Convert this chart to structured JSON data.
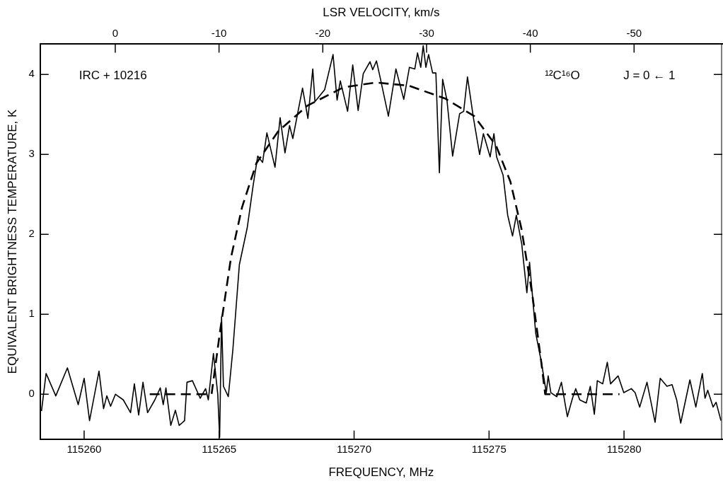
{
  "chart_data": {
    "type": "line",
    "xlabel": "FREQUENCY, MHz",
    "ylabel": "EQUIVALENT BRIGHTNESS TEMPERATURE, K",
    "x2label": "LSR VELOCITY, km/s",
    "xlim": [
      115258.37,
      115283.64
    ],
    "xticks": [
      115260,
      115265,
      115270,
      115275,
      115280
    ],
    "x2lim": [
      7.24,
      -58.5
    ],
    "x2ticks": [
      0,
      -10,
      -20,
      -30,
      -40,
      -50
    ],
    "ylim": [
      -0.56,
      4.38
    ],
    "yticks": [
      0,
      1,
      2,
      3,
      4
    ],
    "grid": false,
    "legend": false,
    "marker": "none",
    "annotations": [
      "IRC + 10216",
      "¹²C¹⁶O",
      "J = 0 ← 1"
    ],
    "series": [
      {
        "color": "#000000",
        "line_style": "solid",
        "x": [
          115258.42,
          115258.59,
          115258.95,
          115259.38,
          115259.78,
          115260.0,
          115260.2,
          115260.55,
          115260.72,
          115260.84,
          115260.98,
          115261.16,
          115261.45,
          115261.72,
          115261.86,
          115262.02,
          115262.18,
          115262.35,
          115262.62,
          115262.82,
          115262.93,
          115263.03,
          115263.21,
          115263.38,
          115263.52,
          115263.72,
          115263.81,
          115264.01,
          115264.3,
          115264.5,
          115264.6,
          115264.79,
          115264.95,
          115265.02,
          115265.09,
          115265.16,
          115265.34,
          115265.51,
          115265.75,
          115266.04,
          115266.26,
          115266.43,
          115266.61,
          115266.77,
          115267.07,
          115267.26,
          115267.44,
          115267.61,
          115267.73,
          115268.09,
          115268.29,
          115268.47,
          115268.55,
          115268.91,
          115269.22,
          115269.37,
          115269.49,
          115269.76,
          115269.95,
          115270.15,
          115270.34,
          115270.59,
          115270.69,
          115270.83,
          115270.98,
          115271.27,
          115271.55,
          115271.84,
          115272.05,
          115272.25,
          115272.35,
          115272.47,
          115272.56,
          115272.66,
          115272.76,
          115272.91,
          115273.03,
          115273.16,
          115273.28,
          115273.44,
          115273.65,
          115273.91,
          115274.06,
          115274.2,
          115274.42,
          115274.65,
          115274.79,
          115275.04,
          115275.18,
          115275.28,
          115275.52,
          115275.69,
          115275.87,
          115276.01,
          115276.21,
          115276.4,
          115276.5,
          115276.73,
          115276.94,
          115277.12,
          115277.19,
          115277.29,
          115277.51,
          115277.68,
          115277.9,
          115278.09,
          115278.21,
          115278.36,
          115278.6,
          115278.75,
          115278.9,
          115279.01,
          115279.21,
          115279.38,
          115279.5,
          115279.78,
          115279.99,
          115280.27,
          115280.41,
          115280.58,
          115280.85,
          115281.15,
          115281.34,
          115281.59,
          115281.78,
          115281.95,
          115282.1,
          115282.44,
          115282.66,
          115282.9,
          115283.0,
          115283.1,
          115283.3,
          115283.41,
          115283.59
        ],
        "values": [
          -0.21,
          0.26,
          -0.02,
          0.33,
          -0.13,
          0.2,
          -0.33,
          0.29,
          -0.18,
          -0.02,
          -0.15,
          0.0,
          -0.07,
          -0.23,
          0.13,
          -0.26,
          0.15,
          -0.23,
          -0.07,
          0.08,
          -0.13,
          0.08,
          -0.39,
          -0.2,
          -0.39,
          -0.33,
          0.15,
          0.17,
          -0.05,
          0.07,
          -0.07,
          0.51,
          0.0,
          -0.54,
          0.97,
          0.1,
          -0.03,
          0.56,
          1.62,
          2.08,
          2.61,
          2.98,
          2.9,
          3.27,
          2.84,
          3.46,
          3.02,
          3.36,
          3.2,
          3.83,
          3.45,
          4.07,
          3.66,
          3.81,
          4.25,
          3.68,
          3.92,
          3.54,
          4.12,
          3.55,
          4.01,
          4.16,
          4.06,
          4.17,
          3.94,
          3.48,
          4.07,
          3.69,
          4.09,
          4.07,
          4.27,
          4.09,
          4.36,
          4.09,
          4.25,
          4.02,
          4.02,
          2.77,
          3.94,
          3.68,
          2.98,
          3.51,
          3.54,
          3.97,
          3.46,
          3.0,
          3.26,
          2.97,
          3.26,
          2.97,
          2.74,
          2.24,
          1.98,
          2.24,
          1.88,
          1.27,
          1.65,
          0.76,
          0.4,
          0.02,
          0.23,
          0.02,
          -0.03,
          0.15,
          -0.28,
          -0.05,
          0.07,
          -0.07,
          -0.11,
          0.1,
          -0.25,
          0.17,
          0.13,
          0.4,
          0.13,
          0.23,
          0.02,
          0.07,
          0.02,
          -0.16,
          0.15,
          -0.35,
          0.2,
          0.1,
          0.12,
          -0.07,
          -0.36,
          0.18,
          -0.16,
          0.26,
          -0.05,
          0.05,
          -0.16,
          -0.1,
          -0.33
        ]
      },
      {
        "color": "#000000",
        "line_style": "dashed",
        "x": [
          115262.43,
          115264.72,
          115265.04,
          115265.44,
          115265.85,
          115266.38,
          115267.19,
          115268.27,
          115269.61,
          115270.82,
          115272.03,
          115273.37,
          115274.45,
          115275.26,
          115275.79,
          115276.2,
          115276.6,
          115276.92,
          115277.08,
          115279.83
        ],
        "values": [
          0,
          0,
          0.8,
          1.71,
          2.34,
          2.89,
          3.29,
          3.61,
          3.84,
          3.9,
          3.86,
          3.7,
          3.48,
          3.11,
          2.66,
          2.07,
          1.25,
          0.44,
          0,
          0
        ]
      }
    ]
  }
}
